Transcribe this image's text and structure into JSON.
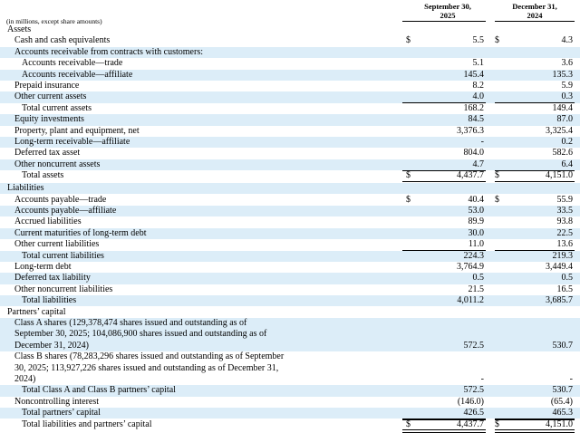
{
  "header": {
    "col1": [
      "September 30,",
      "2025"
    ],
    "col2": [
      "December 31,",
      "2024"
    ],
    "units": "(in millions, except share amounts)"
  },
  "rows": [
    {
      "label": "Assets",
      "indent": 0,
      "shade": false,
      "v1": "",
      "v2": ""
    },
    {
      "label": "Cash and cash equivalents",
      "indent": 1,
      "shade": false,
      "v1": "5.5",
      "v2": "4.3",
      "dollar": true
    },
    {
      "label": "Accounts receivable from contracts with customers:",
      "indent": 1,
      "shade": true,
      "v1": "",
      "v2": ""
    },
    {
      "label": "Accounts receivable—trade",
      "indent": 2,
      "shade": false,
      "v1": "5.1",
      "v2": "3.6"
    },
    {
      "label": "Accounts receivable—affiliate",
      "indent": 2,
      "shade": true,
      "v1": "145.4",
      "v2": "135.3"
    },
    {
      "label": "Prepaid insurance",
      "indent": 1,
      "shade": false,
      "v1": "8.2",
      "v2": "5.9"
    },
    {
      "label": "Other current assets",
      "indent": 1,
      "shade": true,
      "v1": "4.0",
      "v2": "0.3",
      "under": true
    },
    {
      "label": "Total current assets",
      "indent": 2,
      "shade": false,
      "v1": "168.2",
      "v2": "149.4"
    },
    {
      "label": "Equity investments",
      "indent": 1,
      "shade": true,
      "v1": "84.5",
      "v2": "87.0"
    },
    {
      "label": "Property, plant and equipment, net",
      "indent": 1,
      "shade": false,
      "v1": "3,376.3",
      "v2": "3,325.4"
    },
    {
      "label": "Long-term receivable—affiliate",
      "indent": 1,
      "shade": true,
      "v1": "-",
      "v2": "0.2"
    },
    {
      "label": "Deferred tax asset",
      "indent": 1,
      "shade": false,
      "v1": "804.0",
      "v2": "582.6"
    },
    {
      "label": "Other noncurrent assets",
      "indent": 1,
      "shade": true,
      "v1": "4.7",
      "v2": "6.4",
      "under": true
    },
    {
      "label": "Total assets",
      "indent": 2,
      "shade": false,
      "v1": "4,437.7",
      "v2": "4,151.0",
      "dollar": true,
      "double": true,
      "tall": true
    },
    {
      "label": "Liabilities",
      "indent": 0,
      "shade": true,
      "v1": "",
      "v2": ""
    },
    {
      "label": "Accounts payable—trade",
      "indent": 1,
      "shade": false,
      "v1": "40.4",
      "v2": "55.9",
      "dollar": true
    },
    {
      "label": "Accounts payable—affiliate",
      "indent": 1,
      "shade": true,
      "v1": "53.0",
      "v2": "33.5"
    },
    {
      "label": "Accrued liabilities",
      "indent": 1,
      "shade": false,
      "v1": "89.9",
      "v2": "93.8"
    },
    {
      "label": "Current maturities of long-term debt",
      "indent": 1,
      "shade": true,
      "v1": "30.0",
      "v2": "22.5"
    },
    {
      "label": "Other current liabilities",
      "indent": 1,
      "shade": false,
      "v1": "11.0",
      "v2": "13.6",
      "under": true
    },
    {
      "label": "Total current liabilities",
      "indent": 2,
      "shade": true,
      "v1": "224.3",
      "v2": "219.3"
    },
    {
      "label": "Long-term debt",
      "indent": 1,
      "shade": false,
      "v1": "3,764.9",
      "v2": "3,449.4"
    },
    {
      "label": "Deferred tax liability",
      "indent": 1,
      "shade": true,
      "v1": "0.5",
      "v2": "0.5"
    },
    {
      "label": "Other noncurrent liabilities",
      "indent": 1,
      "shade": false,
      "v1": "21.5",
      "v2": "16.5",
      "under": true
    },
    {
      "label": "Total liabilities",
      "indent": 2,
      "shade": true,
      "v1": "4,011.2",
      "v2": "3,685.7"
    },
    {
      "label": "Partners’ capital",
      "indent": 0,
      "shade": false,
      "v1": "",
      "v2": ""
    },
    {
      "label": "Class A shares (129,378,474 shares issued and outstanding as of September 30, 2025; 104,086,900 shares issued and outstanding as of December 31, 2024)",
      "indent": 1,
      "shade": true,
      "v1": "572.5",
      "v2": "530.7",
      "lines": 3
    },
    {
      "label": "Class B shares (78,283,296 shares issued and outstanding as of September 30, 2025; 113,927,226 shares issued and outstanding as of December 31, 2024)",
      "indent": 1,
      "shade": false,
      "v1": "-",
      "v2": "-",
      "lines": 3,
      "under": true
    },
    {
      "label": "Total Class A and Class B partners’ capital",
      "indent": 2,
      "shade": true,
      "v1": "572.5",
      "v2": "530.7"
    },
    {
      "label": "Noncontrolling interest",
      "indent": 1,
      "shade": false,
      "v1": "(146.0)",
      "v2": "(65.4)",
      "under": true
    },
    {
      "label": "Total partners’ capital",
      "indent": 2,
      "shade": true,
      "v1": "426.5",
      "v2": "465.3",
      "under": true
    },
    {
      "label": "Total liabilities and partners’ capital",
      "indent": 2,
      "shade": false,
      "v1": "4,437.7",
      "v2": "4,151.0",
      "dollar": true,
      "double": true,
      "tall": true
    }
  ],
  "dollar_sign": "$",
  "colors": {
    "shade": "#dcedf8"
  }
}
